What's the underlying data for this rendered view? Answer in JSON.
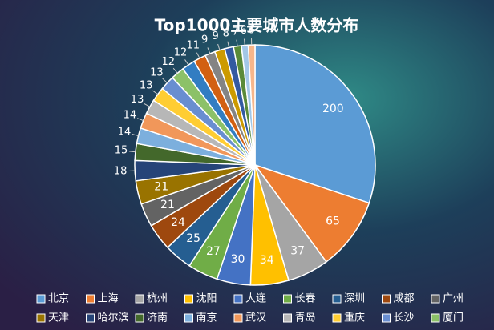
{
  "chart_data": {
    "type": "pie",
    "title": "Top1000主要城市人数分布",
    "categories": [
      "北京",
      "上海",
      "杭州",
      "沈阳",
      "大连",
      "长春",
      "深圳",
      "成都",
      "广州",
      "天津",
      "哈尔滨",
      "济南",
      "南京",
      "武汉",
      "青岛",
      "重庆",
      "长沙",
      "厦门",
      null,
      null,
      null,
      null,
      null,
      null,
      null,
      null
    ],
    "values": [
      200,
      65,
      37,
      34,
      30,
      27,
      25,
      24,
      21,
      21,
      18,
      15,
      14,
      14,
      13,
      13,
      13,
      12,
      12,
      11,
      9,
      9,
      8,
      7,
      6,
      6
    ],
    "colors": [
      "#5b9bd5",
      "#ed7d31",
      "#a5a5a5",
      "#ffc000",
      "#4472c4",
      "#70ad47",
      "#255e91",
      "#9e480e",
      "#636363",
      "#997300",
      "#264478",
      "#43682b",
      "#7cafdd",
      "#f1975a",
      "#b7b7b7",
      "#ffcd33",
      "#698ed0",
      "#8cc168",
      "#327dc2",
      "#d26012",
      "#848484",
      "#cc9a00",
      "#335aa1",
      "#5a8a39",
      "#a3c7e7",
      "#f6b68b"
    ],
    "legend": "bottom"
  }
}
